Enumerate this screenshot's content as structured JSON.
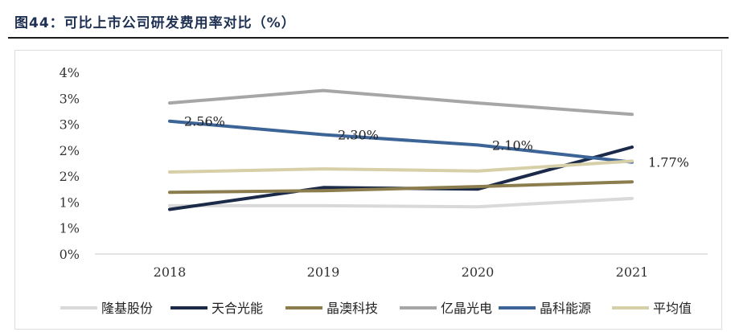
{
  "figure": {
    "title": "图44：可比上市公司研发费用率对比（%）"
  },
  "chart_data": {
    "type": "line",
    "title": "可比上市公司研发费用率对比（%）",
    "categories": [
      "2018",
      "2019",
      "2020",
      "2021"
    ],
    "y_tick_labels": [
      "0%",
      "1%",
      "1%",
      "2%",
      "2%",
      "3%",
      "3%",
      "4%"
    ],
    "ylim": [
      0,
      3.5
    ],
    "grid": false,
    "legend_position": "bottom",
    "series": [
      {
        "name": "隆基股份",
        "color": "#d9d9d9",
        "values": [
          0.93,
          0.93,
          0.91,
          1.07
        ]
      },
      {
        "name": "天合光能",
        "color": "#1b2a49",
        "values": [
          0.86,
          1.28,
          1.25,
          2.06
        ]
      },
      {
        "name": "晶澳科技",
        "color": "#8b7d4e",
        "values": [
          1.19,
          1.22,
          1.3,
          1.39
        ]
      },
      {
        "name": "亿晶光电",
        "color": "#a6a6a6",
        "values": [
          2.91,
          3.15,
          2.91,
          2.69
        ]
      },
      {
        "name": "晶科能源",
        "color": "#3d6496",
        "values": [
          2.56,
          2.3,
          2.1,
          1.77
        ]
      },
      {
        "name": "平均值",
        "color": "#d6cfa8",
        "values": [
          1.58,
          1.64,
          1.6,
          1.79
        ]
      }
    ],
    "annotations": [
      {
        "series": "晶科能源",
        "index": 0,
        "text": "2.56%"
      },
      {
        "series": "晶科能源",
        "index": 1,
        "text": "2.30%"
      },
      {
        "series": "晶科能源",
        "index": 2,
        "text": "2.10%"
      },
      {
        "series": "晶科能源",
        "index": 3,
        "text": "1.77%"
      }
    ]
  }
}
